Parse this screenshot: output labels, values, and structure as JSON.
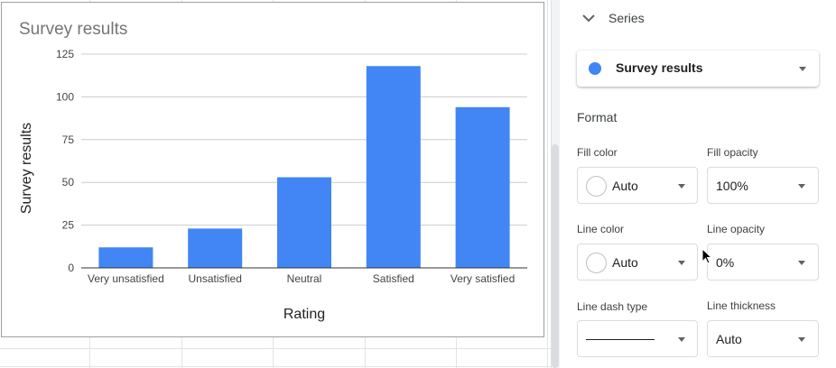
{
  "chart": {
    "title": "Survey results",
    "chart_data": {
      "type": "bar",
      "title": "Survey results",
      "xlabel": "Rating",
      "ylabel": "Survey results",
      "categories": [
        "Very unsatisfied",
        "Unsatisfied",
        "Neutral",
        "Satisfied",
        "Very satisfied"
      ],
      "values": [
        12,
        23,
        53,
        118,
        94
      ],
      "yticks": [
        "0",
        "25",
        "50",
        "75",
        "100",
        "125"
      ],
      "ylim": [
        0,
        125
      ],
      "grid": true,
      "bar_color": "#4285f4"
    }
  },
  "panel": {
    "series_heading": "Series",
    "series_select": "Survey results",
    "series_color": "#4285f4",
    "format_heading": "Format",
    "fill_color_label": "Fill color",
    "fill_color_value": "Auto",
    "fill_opacity_label": "Fill opacity",
    "fill_opacity_value": "100%",
    "line_color_label": "Line color",
    "line_color_value": "Auto",
    "line_opacity_label": "Line opacity",
    "line_opacity_value": "0%",
    "line_dash_label": "Line dash type",
    "line_thickness_label": "Line thickness",
    "line_thickness_value": "Auto"
  }
}
